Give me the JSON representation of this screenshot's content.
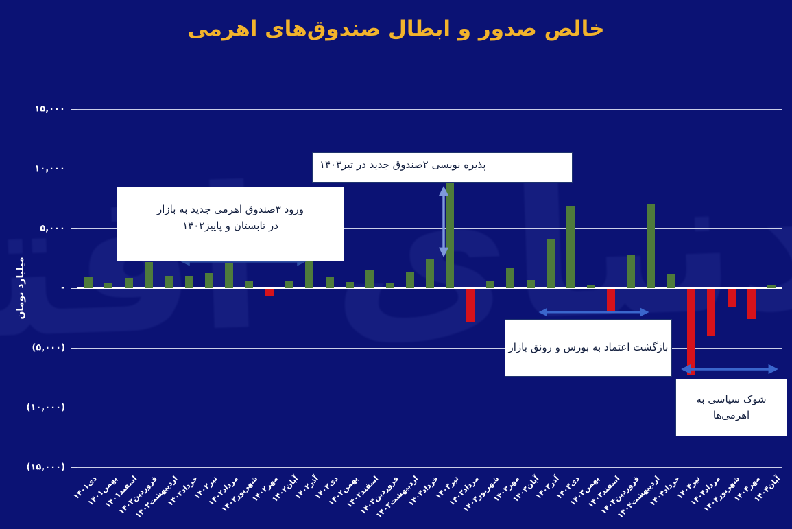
{
  "watermark": "دنیای اقتصاد",
  "chart_data": {
    "type": "bar",
    "title": "خالص صدور و ابطال صندوق‌های اهرمی",
    "ylabel": "میلیارد تومان",
    "xlabel": "",
    "unit": "میلیارد تومان",
    "ylim": [
      -15000,
      15000
    ],
    "grid": true,
    "y_ticks": [
      {
        "value": 15000,
        "label": "۱۵,۰۰۰"
      },
      {
        "value": 10000,
        "label": "۱۰,۰۰۰"
      },
      {
        "value": 5000,
        "label": "۵,۰۰۰"
      },
      {
        "value": 0,
        "label": "-"
      },
      {
        "value": -5000,
        "label": "(۵,۰۰۰)"
      },
      {
        "value": -10000,
        "label": "(۱۰,۰۰۰)"
      },
      {
        "value": -15000,
        "label": "(۱۵,۰۰۰)"
      }
    ],
    "categories": [
      "دی۱۴۰۱",
      "بهمن۱۴۰۱",
      "اسفند۱۴۰۱",
      "فروردین۱۴۰۲",
      "اردیبهشت۱۴۰۲",
      "خرداد۱۴۰۲",
      "تیر۱۴۰۲",
      "مرداد۱۴۰۲",
      "شهریور۱۴۰۲",
      "مهر۱۴۰۲",
      "آبان۱۴۰۲",
      "آذر۱۴۰۲",
      "دی۱۴۰۲",
      "بهمن۱۴۰۲",
      "اسفند۱۴۰۲",
      "فروردین۱۴۰۳",
      "اردیبهشت۱۴۰۳",
      "خرداد۱۴۰۳",
      "تیر۱۴۰۳",
      "مرداد۱۴۰۳",
      "شهریور۱۴۰۳",
      "مهر۱۴۰۳",
      "آبان۱۴۰۳",
      "آذر۱۴۰۳",
      "دی۱۴۰۳",
      "بهمن۱۴۰۳",
      "اسفند۱۴۰۳",
      "فروردین۱۴۰۴",
      "اردیبهشت۱۴۰۴",
      "خرداد۱۴۰۴",
      "تیر۱۴۰۴",
      "مرداد۱۴۰۴",
      "شهریور۱۴۰۴",
      "مهر۱۴۰۴",
      "آبان۱۴۰۴"
    ],
    "values": [
      1000,
      450,
      850,
      2200,
      1050,
      1050,
      1250,
      2100,
      650,
      -600,
      650,
      2250,
      1000,
      500,
      1550,
      400,
      1350,
      2400,
      8900,
      -2800,
      600,
      1750,
      700,
      4150,
      6900,
      300,
      -1900,
      2800,
      7000,
      1150,
      -7250,
      -3950,
      -1500,
      -2550,
      270
    ],
    "bar_colors": {
      "positive": "#4E7B3B",
      "negative": "#D6121B"
    },
    "annotations": [
      {
        "text": "پذیره نویسی ۲صندوق جدید در تیر۱۴۰۳"
      },
      {
        "text": "ورود ۳صندوق اهرمی جدید به بازار\nدر تابستان و پاییز۱۴۰۲"
      },
      {
        "text": "بازگشت اعتماد به بورس و رونق بازار"
      },
      {
        "text": "شوک سیاسی به\nاهرمی‌ها"
      }
    ],
    "legend": null
  },
  "colors": {
    "background": "#0B1274",
    "title": "#F2B32C",
    "axis_text": "#FFFFFF",
    "gridline": "#ECF0FC",
    "positive_bar": "#4E7B3B",
    "negative_bar": "#D6121B",
    "arrow_dark_blue": "#2E4FA3",
    "arrow_light_blue": "#7E99DD",
    "arrow_mid_blue": "#3A66CC",
    "callout_background": "#FFFFFF",
    "callout_text": "#131F3E"
  }
}
